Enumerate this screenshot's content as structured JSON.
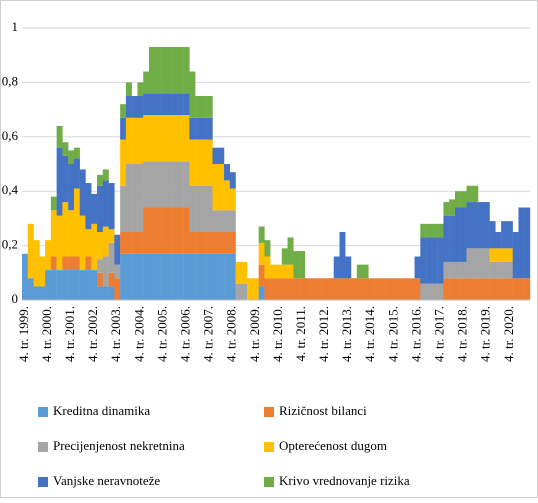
{
  "chart_data": {
    "type": "stacked_bar",
    "categories": [
      "4. tr. 1999.",
      null,
      null,
      null,
      "4. tr. 2000.",
      null,
      null,
      null,
      "4. tr. 2001.",
      null,
      null,
      null,
      "4. tr. 2002.",
      null,
      null,
      null,
      "4. tr. 2003.",
      null,
      null,
      null,
      "4. tr. 2004.",
      null,
      null,
      null,
      "4. tr. 2005.",
      null,
      null,
      null,
      "4. tr. 2006.",
      null,
      null,
      null,
      "4. tr. 2007.",
      null,
      null,
      null,
      "4. tr. 2008.",
      null,
      null,
      null,
      "4. tr. 2009.",
      null,
      null,
      null,
      "4. tr. 2010.",
      null,
      null,
      null,
      "4. tr. 2011.",
      null,
      null,
      null,
      "4. tr. 2012.",
      null,
      null,
      null,
      "4. tr. 2013.",
      null,
      null,
      null,
      "4. tr. 2014.",
      null,
      null,
      null,
      "4. tr. 2015.",
      null,
      null,
      null,
      "4. tr. 2016.",
      null,
      null,
      null,
      "4. tr. 2017.",
      null,
      null,
      null,
      "4. tr. 2018.",
      null,
      null,
      null,
      "4. tr. 2019.",
      null,
      null,
      null,
      "4. tr. 2020.",
      null,
      null,
      null
    ],
    "series": [
      {
        "name": "Kreditna dinamika",
        "color": "#5b9bd5",
        "values": [
          0.17,
          0.08,
          0.05,
          0.05,
          0.11,
          0.11,
          0.11,
          0.11,
          0.11,
          0.11,
          0.11,
          0.11,
          0.11,
          0.05,
          0.05,
          0.05,
          0,
          0.17,
          0.17,
          0.17,
          0.17,
          0.17,
          0.17,
          0.17,
          0.17,
          0.17,
          0.17,
          0.17,
          0.17,
          0.17,
          0.17,
          0.17,
          0.17,
          0.17,
          0.17,
          0.17,
          0.17,
          0,
          0,
          0,
          0,
          0.05,
          0,
          0,
          0,
          0,
          0,
          0,
          0,
          0,
          0,
          0,
          0,
          0,
          0,
          0,
          0,
          0,
          0,
          0,
          0,
          0,
          0,
          0,
          0,
          0,
          0,
          0,
          0,
          0,
          0,
          0,
          0,
          0,
          0,
          0,
          0,
          0,
          0,
          0,
          0,
          0,
          0,
          0,
          0,
          0,
          0,
          0
        ]
      },
      {
        "name": "Rizičnost bilanci",
        "color": "#ed7d31",
        "values": [
          0,
          0,
          0,
          0,
          0,
          0.05,
          0,
          0.05,
          0.05,
          0.05,
          0,
          0.05,
          0,
          0.05,
          0,
          0.05,
          0.08,
          0.08,
          0.08,
          0.08,
          0.08,
          0.17,
          0.17,
          0.17,
          0.17,
          0.17,
          0.17,
          0.17,
          0.17,
          0.08,
          0.08,
          0.08,
          0.08,
          0.08,
          0.08,
          0.08,
          0.08,
          0,
          0,
          0,
          0,
          0.08,
          0.08,
          0.08,
          0.08,
          0.08,
          0.08,
          0.08,
          0.08,
          0.08,
          0.08,
          0.08,
          0.08,
          0.08,
          0.08,
          0.08,
          0.08,
          0.08,
          0.08,
          0.08,
          0.08,
          0.08,
          0.08,
          0.08,
          0.08,
          0.08,
          0.08,
          0.08,
          0.08,
          0,
          0,
          0,
          0,
          0.08,
          0.08,
          0.08,
          0.08,
          0.08,
          0.08,
          0.08,
          0.08,
          0.08,
          0.08,
          0.08,
          0.08,
          0.08,
          0.08,
          0.08
        ]
      },
      {
        "name": "Precijenjenost nekretnina",
        "color": "#a5a5a5",
        "values": [
          0,
          0,
          0,
          0,
          0,
          0,
          0,
          0,
          0,
          0,
          0,
          0,
          0,
          0.05,
          0.11,
          0.11,
          0.05,
          0.17,
          0.25,
          0.25,
          0.25,
          0.17,
          0.17,
          0.17,
          0.17,
          0.17,
          0.17,
          0.17,
          0.17,
          0.17,
          0.17,
          0.17,
          0.17,
          0.08,
          0.08,
          0.08,
          0.08,
          0.06,
          0.06,
          0,
          0,
          0,
          0,
          0,
          0,
          0,
          0,
          0,
          0,
          0,
          0,
          0,
          0,
          0,
          0,
          0,
          0,
          0,
          0,
          0,
          0,
          0,
          0,
          0,
          0,
          0,
          0,
          0,
          0,
          0.06,
          0.06,
          0.06,
          0.06,
          0.06,
          0.06,
          0.06,
          0.06,
          0.11,
          0.11,
          0.11,
          0.11,
          0.06,
          0.06,
          0.06,
          0.06,
          0,
          0,
          0
        ]
      },
      {
        "name": "Opterećenost dugom",
        "color": "#ffc000",
        "values": [
          0,
          0.2,
          0.17,
          0.11,
          0.11,
          0.17,
          0.2,
          0.2,
          0.17,
          0.25,
          0.2,
          0.1,
          0.17,
          0.1,
          0.11,
          0.05,
          0,
          0.17,
          0.17,
          0.17,
          0.17,
          0.17,
          0.17,
          0.17,
          0.17,
          0.17,
          0.17,
          0.17,
          0.17,
          0.17,
          0.17,
          0.17,
          0.17,
          0.17,
          0.17,
          0.11,
          0.08,
          0.08,
          0.08,
          0.08,
          0.08,
          0.08,
          0.08,
          0.05,
          0.05,
          0.05,
          0.05,
          0,
          0,
          0,
          0,
          0,
          0,
          0,
          0,
          0,
          0,
          0,
          0,
          0,
          0,
          0,
          0,
          0,
          0,
          0,
          0,
          0,
          0,
          0,
          0,
          0,
          0,
          0,
          0,
          0,
          0,
          0,
          0,
          0,
          0,
          0.05,
          0.05,
          0.05,
          0.05,
          0,
          0,
          0
        ]
      },
      {
        "name": "Vanjske neravnoteže",
        "color": "#4472c4",
        "values": [
          0,
          0,
          0,
          0,
          0,
          0,
          0.25,
          0.17,
          0.17,
          0.11,
          0.17,
          0.17,
          0.11,
          0.17,
          0.17,
          0.17,
          0.11,
          0.08,
          0.08,
          0.08,
          0.08,
          0.08,
          0.08,
          0.08,
          0.08,
          0.08,
          0.08,
          0.08,
          0.08,
          0.08,
          0.08,
          0.08,
          0.08,
          0.06,
          0.06,
          0.06,
          0.06,
          0,
          0,
          0,
          0,
          0,
          0,
          0,
          0,
          0,
          0,
          0,
          0,
          0,
          0,
          0,
          0,
          0,
          0.08,
          0.17,
          0.08,
          0,
          0,
          0,
          0,
          0,
          0,
          0,
          0,
          0,
          0,
          0,
          0.08,
          0.17,
          0.17,
          0.17,
          0.17,
          0.17,
          0.17,
          0.2,
          0.2,
          0.17,
          0.17,
          0.17,
          0.17,
          0.1,
          0.06,
          0.1,
          0.1,
          0.17,
          0.26,
          0.26
        ]
      },
      {
        "name": "Krivo vrednovanje rizika",
        "color": "#70ad47",
        "values": [
          0,
          0,
          0,
          0,
          0,
          0.05,
          0.08,
          0.05,
          0.05,
          0.04,
          0,
          0,
          0,
          0.04,
          0.04,
          0,
          0,
          0.05,
          0.05,
          0,
          0.05,
          0.08,
          0.17,
          0.17,
          0.17,
          0.17,
          0.17,
          0.17,
          0.17,
          0.17,
          0.08,
          0.08,
          0.08,
          0,
          0,
          0,
          0,
          0,
          0,
          0,
          0,
          0.06,
          0.06,
          0,
          0,
          0.06,
          0.1,
          0.1,
          0.1,
          0,
          0,
          0,
          0,
          0,
          0,
          0,
          0,
          0,
          0.05,
          0.05,
          0,
          0,
          0,
          0,
          0,
          0,
          0,
          0,
          0,
          0.05,
          0.05,
          0.05,
          0.05,
          0.05,
          0.06,
          0.06,
          0.06,
          0.06,
          0.06,
          0,
          0,
          0,
          0,
          0,
          0,
          0,
          0,
          0
        ]
      }
    ],
    "ylim": [
      0,
      1
    ],
    "yticks": [
      0,
      {
        "value": 0.2,
        "label": "0,2"
      },
      {
        "value": 0.4,
        "label": "0,4"
      },
      {
        "value": 0.6,
        "label": "0,6"
      },
      {
        "value": 0.8,
        "label": "0,8"
      },
      1
    ],
    "grid": true,
    "legend": "bottom"
  }
}
